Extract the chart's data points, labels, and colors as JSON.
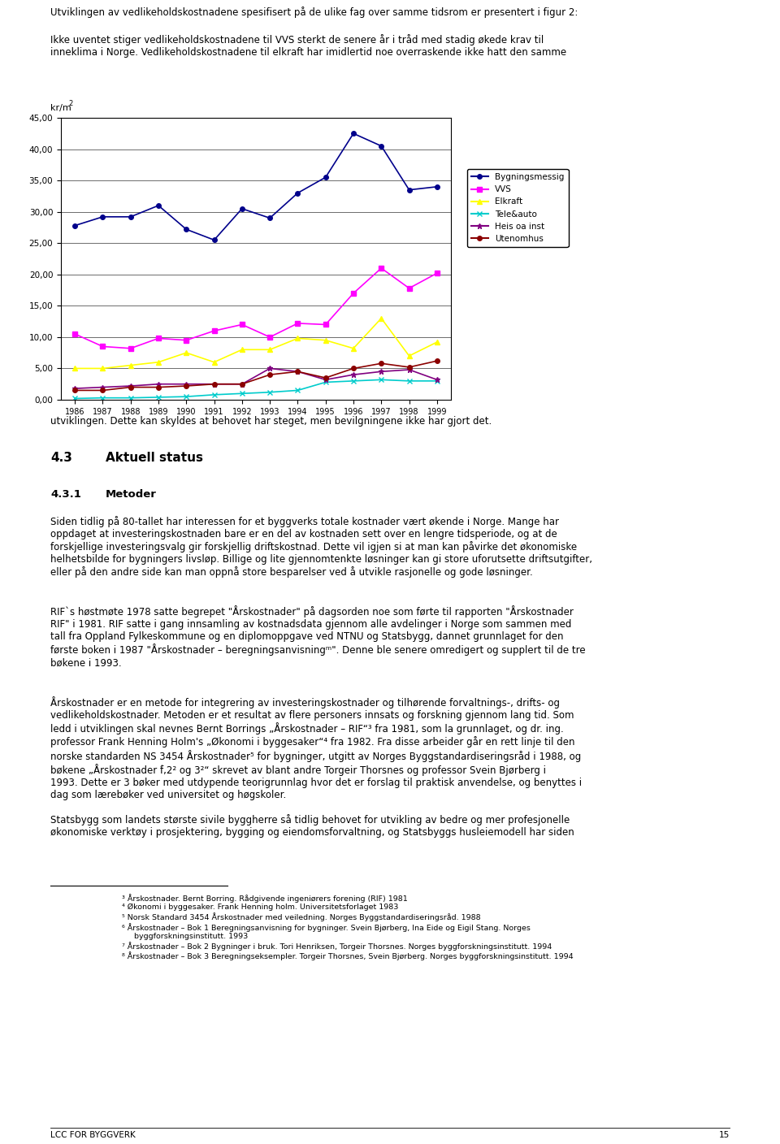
{
  "years": [
    1986,
    1987,
    1988,
    1989,
    1990,
    1991,
    1992,
    1993,
    1994,
    1995,
    1996,
    1997,
    1998,
    1999
  ],
  "bygningsmessig": [
    27.8,
    29.2,
    29.2,
    31.0,
    27.2,
    25.5,
    30.5,
    29.0,
    33.0,
    35.5,
    42.5,
    40.5,
    33.5,
    34.0
  ],
  "vvs": [
    10.5,
    8.5,
    8.2,
    9.8,
    9.5,
    11.0,
    12.0,
    10.0,
    12.2,
    12.0,
    17.0,
    21.0,
    17.8,
    20.2
  ],
  "elkraft": [
    5.0,
    5.0,
    5.5,
    6.0,
    7.5,
    6.0,
    8.0,
    8.0,
    9.8,
    9.5,
    8.2,
    13.0,
    7.0,
    9.2
  ],
  "tele_auto": [
    0.2,
    0.3,
    0.3,
    0.4,
    0.5,
    0.8,
    1.0,
    1.2,
    1.5,
    2.8,
    3.0,
    3.2,
    3.0,
    3.0
  ],
  "heis_oa": [
    1.8,
    2.0,
    2.2,
    2.5,
    2.5,
    2.5,
    2.5,
    5.0,
    4.5,
    3.2,
    4.0,
    4.5,
    4.8,
    3.2
  ],
  "utenomhus": [
    1.5,
    1.5,
    2.0,
    2.0,
    2.2,
    2.5,
    2.5,
    4.0,
    4.5,
    3.5,
    5.0,
    5.8,
    5.2,
    6.2
  ],
  "ylim": [
    0,
    45
  ],
  "yticks": [
    0.0,
    5.0,
    10.0,
    15.0,
    20.0,
    25.0,
    30.0,
    35.0,
    40.0,
    45.0
  ],
  "colors": {
    "bygningsmessig": "#00008B",
    "vvs": "#FF00FF",
    "elkraft": "#FFFF00",
    "tele_auto": "#00CCCC",
    "heis_oa": "#800080",
    "utenomhus": "#8B0000"
  },
  "figsize": [
    9.6,
    14.08
  ],
  "dpi": 100
}
